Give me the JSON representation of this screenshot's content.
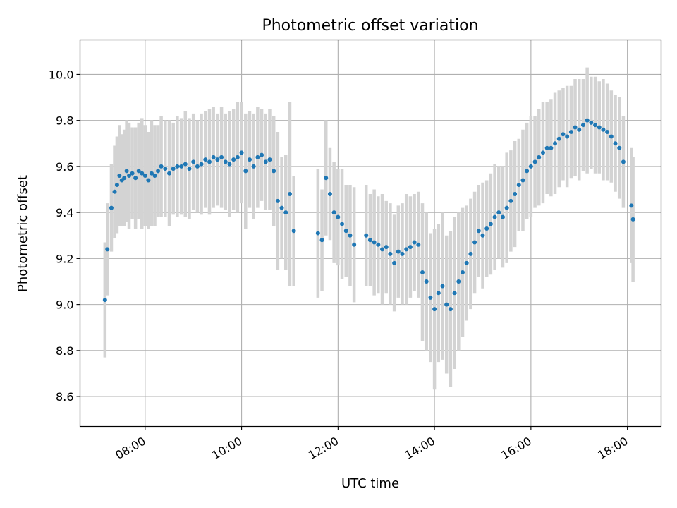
{
  "chart_data": {
    "type": "scatter",
    "title": "Photometric offset variation",
    "xlabel": "UTC time",
    "ylabel": "Photometric offset",
    "x_unit": "hours UTC",
    "xlim": [
      6.65,
      18.7
    ],
    "ylim": [
      8.47,
      10.15
    ],
    "x_ticks": [
      "08:00",
      "10:00",
      "12:00",
      "14:00",
      "16:00",
      "18:00"
    ],
    "y_ticks": [
      "8.6",
      "8.8",
      "9.0",
      "9.2",
      "9.4",
      "9.6",
      "9.8",
      "10.0"
    ],
    "grid": true,
    "legend": "none",
    "point_color": "#1f77b4",
    "errorbar_color": "#d3d3d3",
    "series": [
      {
        "x": [
          "07:10",
          "07:13",
          "07:18",
          "07:22",
          "07:25",
          "07:28",
          "07:31",
          "07:34",
          "07:37",
          "07:40",
          "07:44",
          "07:48",
          "07:52",
          "07:56",
          "08:00",
          "08:04",
          "08:08",
          "08:12",
          "08:16",
          "08:20",
          "08:25",
          "08:30",
          "08:35",
          "08:40",
          "08:45",
          "08:50",
          "08:55",
          "09:00",
          "09:05",
          "09:10",
          "09:15",
          "09:20",
          "09:25",
          "09:30",
          "09:35",
          "09:40",
          "09:45",
          "09:50",
          "09:55",
          "10:00",
          "10:05",
          "10:10",
          "10:15",
          "10:20",
          "10:25",
          "10:30",
          "10:35",
          "10:40",
          "10:45",
          "10:50",
          "10:55",
          "11:00",
          "11:05",
          "11:35",
          "11:40",
          "11:45",
          "11:50",
          "11:55",
          "12:00",
          "12:05",
          "12:10",
          "12:15",
          "12:20",
          "12:35",
          "12:40",
          "12:45",
          "12:50",
          "12:55",
          "13:00",
          "13:05",
          "13:10",
          "13:15",
          "13:20",
          "13:25",
          "13:30",
          "13:35",
          "13:40",
          "13:45",
          "13:50",
          "13:55",
          "14:00",
          "14:05",
          "14:10",
          "14:15",
          "14:20",
          "14:25",
          "14:30",
          "14:35",
          "14:40",
          "14:45",
          "14:50",
          "14:55",
          "15:00",
          "15:05",
          "15:10",
          "15:15",
          "15:20",
          "15:25",
          "15:30",
          "15:35",
          "15:40",
          "15:45",
          "15:50",
          "15:55",
          "16:00",
          "16:05",
          "16:10",
          "16:15",
          "16:20",
          "16:25",
          "16:30",
          "16:35",
          "16:40",
          "16:45",
          "16:50",
          "16:55",
          "17:00",
          "17:05",
          "17:10",
          "17:15",
          "17:20",
          "17:25",
          "17:30",
          "17:35",
          "17:40",
          "17:45",
          "17:50",
          "17:55",
          "18:05",
          "18:07"
        ],
        "y": [
          9.02,
          9.24,
          9.42,
          9.49,
          9.52,
          9.56,
          9.54,
          9.55,
          9.58,
          9.56,
          9.57,
          9.55,
          9.58,
          9.57,
          9.56,
          9.54,
          9.57,
          9.56,
          9.58,
          9.6,
          9.59,
          9.57,
          9.59,
          9.6,
          9.6,
          9.61,
          9.59,
          9.62,
          9.6,
          9.61,
          9.63,
          9.62,
          9.64,
          9.63,
          9.64,
          9.62,
          9.61,
          9.63,
          9.64,
          9.66,
          9.58,
          9.63,
          9.6,
          9.64,
          9.65,
          9.62,
          9.63,
          9.58,
          9.45,
          9.42,
          9.4,
          9.48,
          9.32,
          9.31,
          9.28,
          9.55,
          9.48,
          9.4,
          9.38,
          9.35,
          9.32,
          9.3,
          9.26,
          9.3,
          9.28,
          9.27,
          9.26,
          9.24,
          9.25,
          9.22,
          9.18,
          9.23,
          9.22,
          9.24,
          9.25,
          9.27,
          9.26,
          9.14,
          9.1,
          9.03,
          8.98,
          9.05,
          9.08,
          9.0,
          8.98,
          9.05,
          9.1,
          9.14,
          9.18,
          9.22,
          9.27,
          9.32,
          9.3,
          9.33,
          9.35,
          9.38,
          9.4,
          9.38,
          9.42,
          9.45,
          9.48,
          9.52,
          9.54,
          9.58,
          9.6,
          9.62,
          9.64,
          9.66,
          9.68,
          9.68,
          9.7,
          9.72,
          9.74,
          9.73,
          9.75,
          9.77,
          9.76,
          9.78,
          9.8,
          9.79,
          9.78,
          9.77,
          9.76,
          9.75,
          9.73,
          9.7,
          9.68,
          9.62,
          9.43,
          9.37
        ],
        "err": [
          0.25,
          0.2,
          0.19,
          0.2,
          0.21,
          0.22,
          0.2,
          0.21,
          0.22,
          0.23,
          0.2,
          0.22,
          0.21,
          0.24,
          0.22,
          0.21,
          0.23,
          0.22,
          0.2,
          0.22,
          0.21,
          0.23,
          0.2,
          0.22,
          0.21,
          0.23,
          0.22,
          0.21,
          0.2,
          0.22,
          0.21,
          0.23,
          0.22,
          0.2,
          0.22,
          0.21,
          0.23,
          0.22,
          0.24,
          0.22,
          0.25,
          0.21,
          0.23,
          0.22,
          0.2,
          0.21,
          0.22,
          0.24,
          0.3,
          0.22,
          0.25,
          0.4,
          0.24,
          0.28,
          0.22,
          0.25,
          0.2,
          0.22,
          0.21,
          0.24,
          0.2,
          0.22,
          0.25,
          0.22,
          0.2,
          0.23,
          0.21,
          0.24,
          0.2,
          0.22,
          0.21,
          0.2,
          0.22,
          0.24,
          0.22,
          0.21,
          0.23,
          0.3,
          0.3,
          0.28,
          0.35,
          0.3,
          0.32,
          0.3,
          0.34,
          0.33,
          0.3,
          0.28,
          0.25,
          0.24,
          0.22,
          0.2,
          0.23,
          0.21,
          0.22,
          0.23,
          0.2,
          0.22,
          0.24,
          0.22,
          0.23,
          0.2,
          0.22,
          0.21,
          0.22,
          0.2,
          0.21,
          0.22,
          0.2,
          0.21,
          0.22,
          0.21,
          0.2,
          0.22,
          0.2,
          0.21,
          0.22,
          0.2,
          0.23,
          0.2,
          0.21,
          0.2,
          0.22,
          0.21,
          0.2,
          0.21,
          0.22,
          0.2,
          0.25,
          0.27
        ]
      }
    ]
  }
}
